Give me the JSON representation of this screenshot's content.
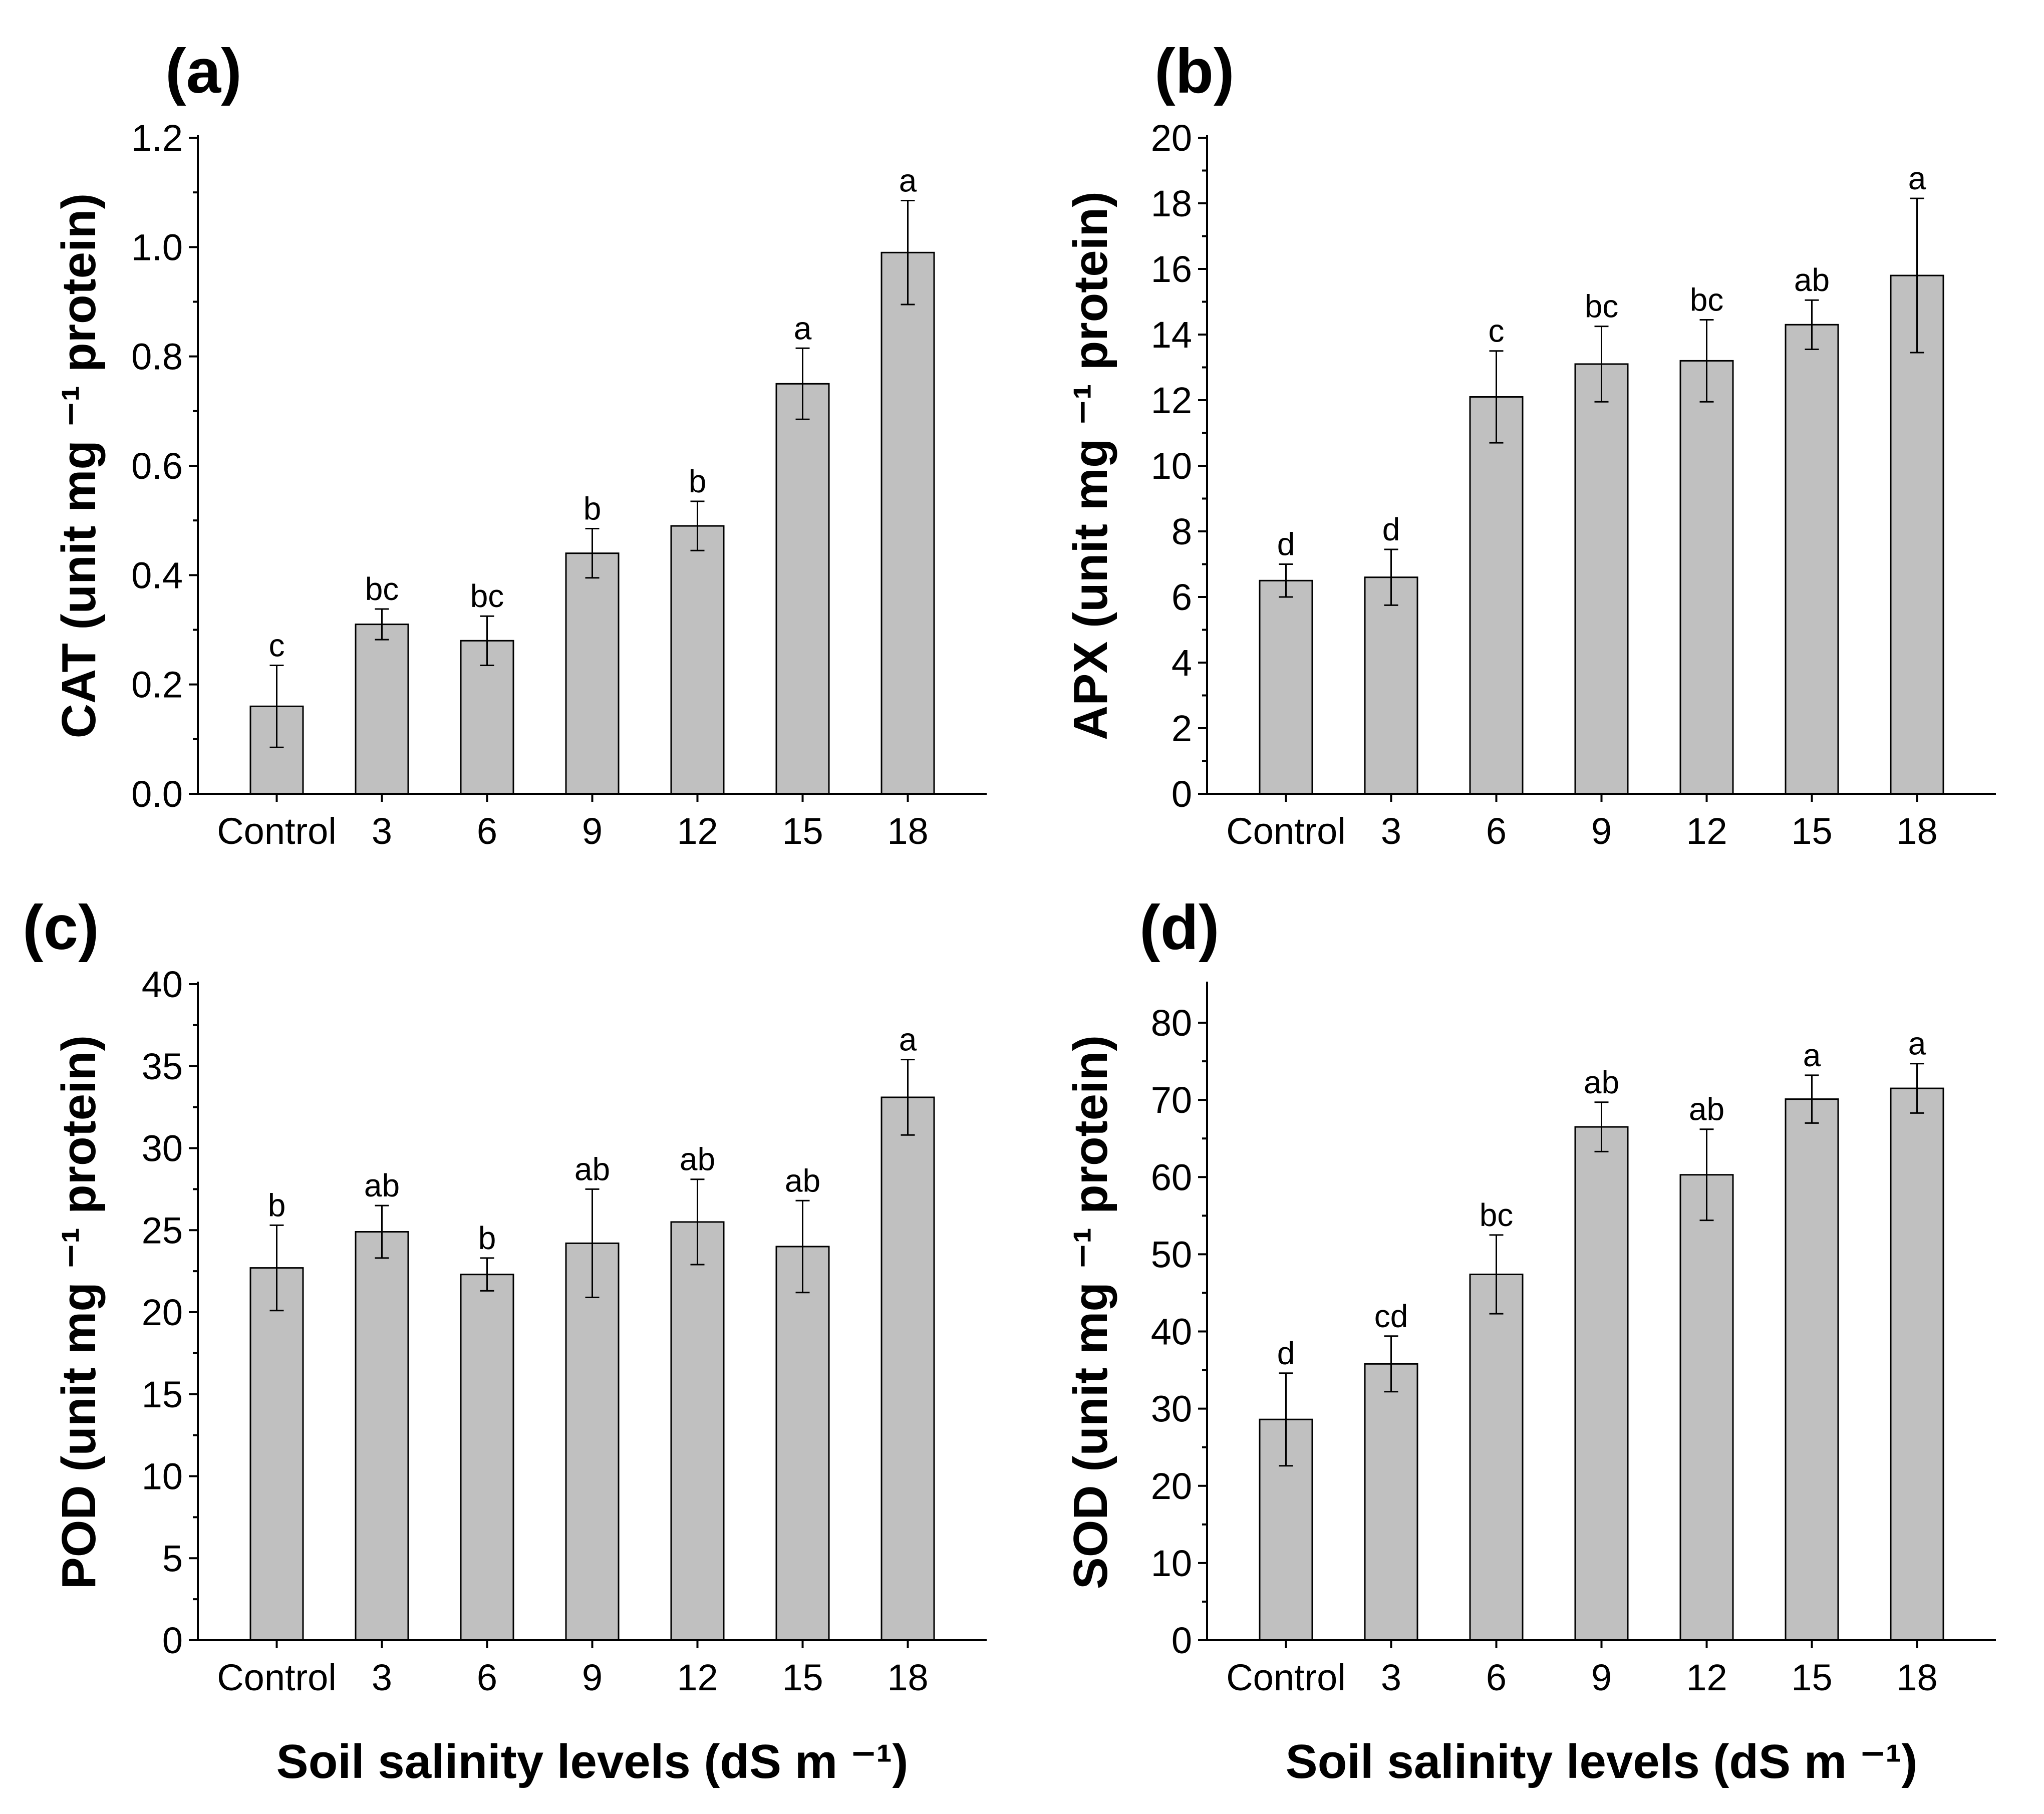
{
  "colors": {
    "bar_fill": "#c0c0c0",
    "bar_stroke": "#000000",
    "axis": "#000000"
  },
  "xlabel": "Soil salinity levels (dS m ⁻¹)",
  "chart_data": [
    {
      "type": "bar",
      "panel": "(a)",
      "ylabel": "CAT (unit mg ⁻¹ protein)",
      "categories": [
        "Control",
        "3",
        "6",
        "9",
        "12",
        "15",
        "18"
      ],
      "values": [
        0.16,
        0.31,
        0.28,
        0.44,
        0.49,
        0.75,
        0.99
      ],
      "errors": [
        0.075,
        0.028,
        0.045,
        0.045,
        0.045,
        0.065,
        0.095
      ],
      "letters": [
        "c",
        "bc",
        "bc",
        "b",
        "b",
        "a",
        "a"
      ],
      "ylim": [
        0,
        1.2
      ],
      "yticks": [
        0.0,
        0.2,
        0.4,
        0.6,
        0.8,
        1.0,
        1.2
      ],
      "ytick_labels": [
        "0.0",
        "0.2",
        "0.4",
        "0.6",
        "0.8",
        "1.0",
        "1.2"
      ],
      "xlabel": ""
    },
    {
      "type": "bar",
      "panel": "(b)",
      "ylabel": "APX (unit mg ⁻¹ protein)",
      "categories": [
        "Control",
        "3",
        "6",
        "9",
        "12",
        "15",
        "18"
      ],
      "values": [
        6.5,
        6.6,
        12.1,
        13.1,
        13.2,
        14.3,
        15.8
      ],
      "errors": [
        0.5,
        0.85,
        1.4,
        1.15,
        1.25,
        0.75,
        2.35
      ],
      "letters": [
        "d",
        "d",
        "c",
        "bc",
        "bc",
        "ab",
        "a"
      ],
      "ylim": [
        0,
        20
      ],
      "yticks": [
        0,
        2,
        4,
        6,
        8,
        10,
        12,
        14,
        16,
        18,
        20
      ],
      "ytick_labels": [
        "0",
        "2",
        "4",
        "6",
        "8",
        "10",
        "12",
        "14",
        "16",
        "18",
        "20"
      ],
      "xlabel": ""
    },
    {
      "type": "bar",
      "panel": "(c)",
      "ylabel": "POD (unit mg ⁻¹ protein)",
      "categories": [
        "Control",
        "3",
        "6",
        "9",
        "12",
        "15",
        "18"
      ],
      "values": [
        22.7,
        24.9,
        22.3,
        24.2,
        25.5,
        24.0,
        33.1
      ],
      "errors": [
        2.6,
        1.6,
        1.0,
        3.3,
        2.6,
        2.8,
        2.3
      ],
      "letters": [
        "b",
        "ab",
        "b",
        "ab",
        "ab",
        "ab",
        "a"
      ],
      "ylim": [
        0,
        40
      ],
      "yticks": [
        0,
        5,
        10,
        15,
        20,
        25,
        30,
        35,
        40
      ],
      "ytick_labels": [
        "0",
        "5",
        "10",
        "15",
        "20",
        "25",
        "30",
        "35",
        "40"
      ],
      "xlabel": "Soil salinity levels (dS m ⁻¹)"
    },
    {
      "type": "bar",
      "panel": "(d)",
      "ylabel": "SOD (unit mg ⁻¹ protein)",
      "categories": [
        "Control",
        "3",
        "6",
        "9",
        "12",
        "15",
        "18"
      ],
      "values": [
        28.6,
        35.8,
        47.4,
        66.5,
        60.3,
        70.1,
        71.5
      ],
      "errors": [
        6.0,
        3.6,
        5.1,
        3.2,
        5.9,
        3.1,
        3.2
      ],
      "letters": [
        "d",
        "cd",
        "bc",
        "ab",
        "ab",
        "a",
        "a"
      ],
      "ylim": [
        0,
        85
      ],
      "yticks": [
        0,
        10,
        20,
        30,
        40,
        50,
        60,
        70,
        80
      ],
      "ytick_labels": [
        "0",
        "10",
        "20",
        "30",
        "40",
        "50",
        "60",
        "70",
        "80"
      ],
      "xlabel": "Soil salinity levels (dS m ⁻¹)"
    }
  ]
}
